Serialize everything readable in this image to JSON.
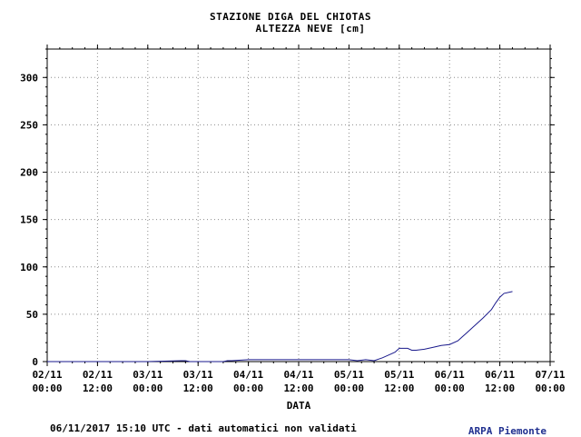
{
  "header": {
    "title_line1": "STAZIONE DIGA DEL CHIOTAS",
    "title_line2": "ALTEZZA NEVE [cm]"
  },
  "footer": {
    "timestamp_note": "06/11/2017 15:10 UTC - dati automatici non validati",
    "agency": "ARPA Piemonte"
  },
  "chart_data": {
    "type": "line",
    "title": "STAZIONE DIGA DEL CHIOTAS",
    "subtitle": "ALTEZZA NEVE [cm]",
    "xlabel": "DATA",
    "ylabel": "",
    "ylim": [
      0,
      330
    ],
    "xlim": [
      "02/11 00:00",
      "07/11 00:00"
    ],
    "grid": true,
    "y_ticks": [
      0,
      50,
      100,
      150,
      200,
      250,
      300
    ],
    "x_ticks": [
      {
        "date": "02/11",
        "time": "00:00"
      },
      {
        "date": "02/11",
        "time": "12:00"
      },
      {
        "date": "03/11",
        "time": "00:00"
      },
      {
        "date": "03/11",
        "time": "12:00"
      },
      {
        "date": "04/11",
        "time": "00:00"
      },
      {
        "date": "04/11",
        "time": "12:00"
      },
      {
        "date": "05/11",
        "time": "00:00"
      },
      {
        "date": "05/11",
        "time": "12:00"
      },
      {
        "date": "06/11",
        "time": "00:00"
      },
      {
        "date": "06/11",
        "time": "12:00"
      },
      {
        "date": "07/11",
        "time": "00:00"
      }
    ],
    "series_color": "#1a1a8c",
    "series": [
      {
        "name": "",
        "x": [
          "02/11 00:00",
          "02/11 12:00",
          "03/11 00:00",
          "03/11 08:00",
          "03/11 09:00",
          "03/11 10:00",
          "03/11 18:00",
          "03/11 19:00",
          "03/11 20:00",
          "04/11 00:00",
          "04/11 12:00",
          "05/11 00:00",
          "05/11 02:00",
          "05/11 04:00",
          "05/11 06:00",
          "05/11 08:00",
          "05/11 10:00",
          "05/11 11:00",
          "05/11 12:00",
          "05/11 14:00",
          "05/11 15:00",
          "05/11 16:00",
          "05/11 18:00",
          "05/11 20:00",
          "05/11 22:00",
          "06/11 00:00",
          "06/11 02:00",
          "06/11 04:00",
          "06/11 06:00",
          "06/11 08:00",
          "06/11 10:00",
          "06/11 11:00",
          "06/11 12:00",
          "06/11 13:00",
          "06/11 15:00"
        ],
        "y": [
          0,
          0,
          0,
          1,
          1,
          0,
          0,
          1,
          1,
          2,
          2,
          2,
          1,
          2,
          1,
          4,
          8,
          10,
          14,
          14,
          12,
          12,
          13,
          15,
          17,
          18,
          22,
          30,
          38,
          46,
          55,
          62,
          68,
          72,
          74
        ]
      }
    ]
  }
}
